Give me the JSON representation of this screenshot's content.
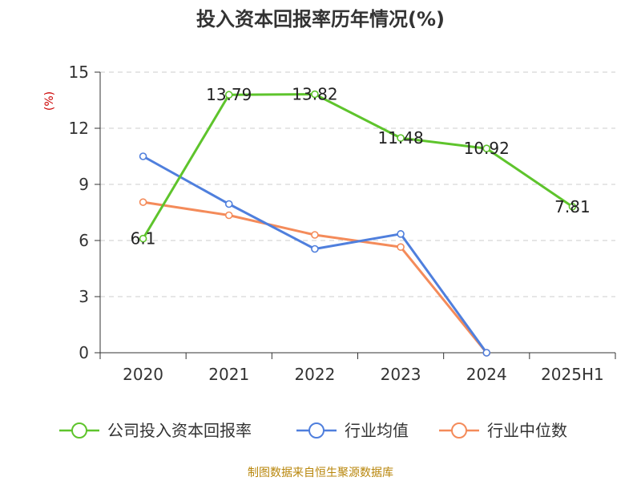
{
  "chart_data": {
    "type": "line",
    "title": "投入资本回报率历年情况(%)",
    "ylabel": "(%)",
    "xlabel": "",
    "categories": [
      "2020",
      "2021",
      "2022",
      "2023",
      "2024",
      "2025H1"
    ],
    "ylim": [
      0,
      15
    ],
    "yticks": [
      "0",
      "3",
      "6",
      "9",
      "12",
      "15"
    ],
    "grid": true,
    "legend_position": "bottom",
    "series": [
      {
        "name": "公司投入资本回报率",
        "color": "#5ec42c",
        "values": [
          6.1,
          13.79,
          13.82,
          11.48,
          10.92,
          7.81
        ],
        "labels": [
          "6.1",
          "13.79",
          "13.82",
          "11.48",
          "10.92",
          "7.81"
        ]
      },
      {
        "name": "行业均值",
        "color": "#4f7fdd",
        "values": [
          10.5,
          7.95,
          5.55,
          6.35,
          0,
          null
        ]
      },
      {
        "name": "行业中位数",
        "color": "#f48b5a",
        "values": [
          8.05,
          7.35,
          6.3,
          5.65,
          0,
          null
        ]
      }
    ]
  },
  "source": "制图数据来自恒生聚源数据库",
  "colors": {
    "ylabel": "#cc0000",
    "source": "#b8860b",
    "grid": "#cccccc",
    "axis": "#333333"
  }
}
